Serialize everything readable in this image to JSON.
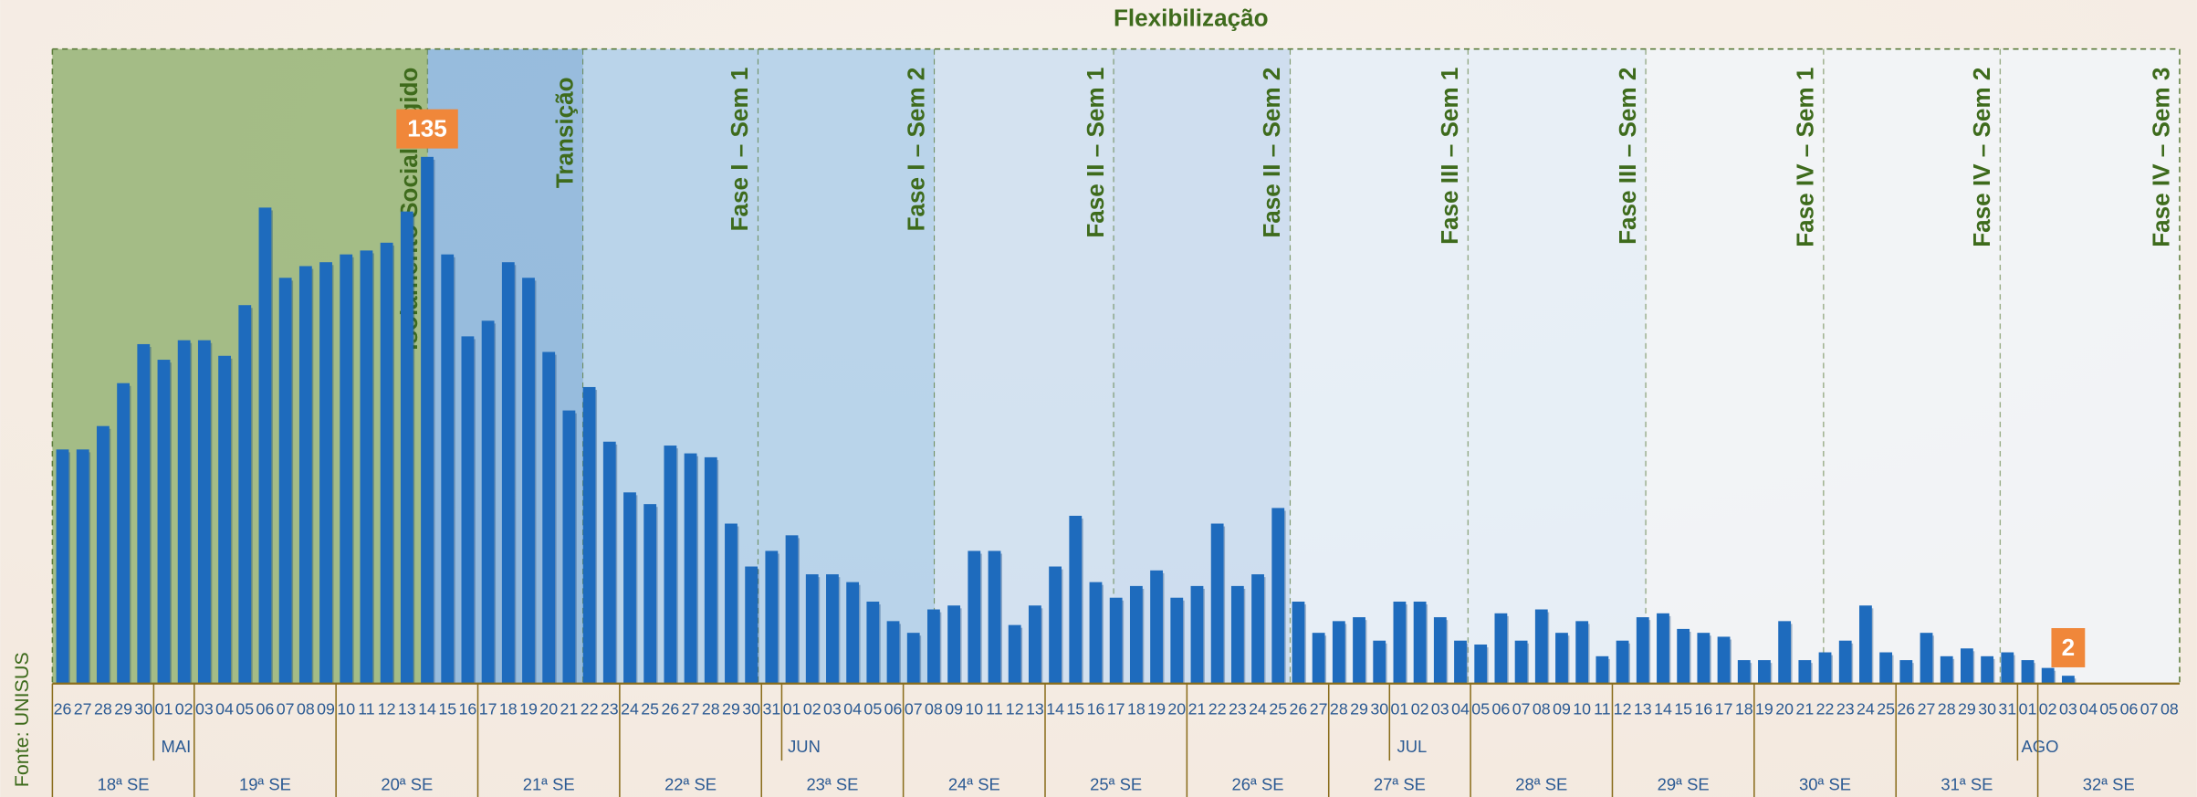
{
  "chart_data": {
    "type": "bar",
    "title": "Flexibilização",
    "source": "Fonte: UNISUS",
    "color": "#1e6bbd",
    "categories": [
      "26",
      "27",
      "28",
      "29",
      "30",
      "01",
      "02",
      "03",
      "04",
      "05",
      "06",
      "07",
      "08",
      "09",
      "10",
      "11",
      "12",
      "13",
      "14",
      "15",
      "16",
      "17",
      "18",
      "19",
      "20",
      "21",
      "22",
      "23",
      "24",
      "25",
      "26",
      "27",
      "28",
      "29",
      "30",
      "31",
      "01",
      "02",
      "03",
      "04",
      "05",
      "06",
      "07",
      "08",
      "09",
      "10",
      "11",
      "12",
      "13",
      "14",
      "15",
      "16",
      "17",
      "18",
      "19",
      "20",
      "21",
      "22",
      "23",
      "24",
      "25",
      "26",
      "27",
      "28",
      "29",
      "30",
      "01",
      "02",
      "03",
      "04",
      "05",
      "06",
      "07",
      "08",
      "09",
      "10",
      "11",
      "12",
      "13",
      "14",
      "15",
      "16",
      "17",
      "18",
      "19",
      "20",
      "21",
      "22",
      "23",
      "24",
      "25",
      "26",
      "27",
      "28",
      "29",
      "30",
      "31",
      "01",
      "02",
      "03",
      "04",
      "05",
      "06",
      "07",
      "08"
    ],
    "values": [
      60,
      60,
      66,
      77,
      87,
      83,
      88,
      88,
      84,
      97,
      122,
      104,
      107,
      108,
      110,
      111,
      113,
      121,
      135,
      110,
      89,
      93,
      108,
      104,
      85,
      70,
      76,
      62,
      49,
      46,
      61,
      59,
      58,
      41,
      30,
      34,
      38,
      28,
      28,
      26,
      21,
      16,
      13,
      19,
      20,
      34,
      34,
      15,
      20,
      30,
      43,
      26,
      22,
      25,
      29,
      22,
      25,
      41,
      25,
      28,
      45,
      21,
      13,
      16,
      17,
      11,
      21,
      21,
      17,
      11,
      10,
      18,
      11,
      19,
      13,
      16,
      7,
      11,
      17,
      18,
      14,
      13,
      12,
      6,
      6,
      16,
      6,
      8,
      11,
      20,
      8,
      6,
      13,
      7,
      9,
      7,
      8,
      6,
      4,
      2,
      null,
      null,
      null,
      null,
      null
    ],
    "value_labels": [
      null,
      null,
      null,
      null,
      null,
      null,
      null,
      null,
      null,
      null,
      null,
      null,
      null,
      null,
      null,
      null,
      null,
      null,
      "135",
      null,
      null,
      null,
      null,
      null,
      null,
      null,
      null,
      null,
      null,
      null,
      null,
      null,
      null,
      null,
      null,
      null,
      null,
      null,
      null,
      null,
      null,
      null,
      null,
      null,
      null,
      null,
      null,
      null,
      null,
      null,
      null,
      null,
      null,
      null,
      null,
      null,
      null,
      null,
      null,
      null,
      null,
      null,
      null,
      null,
      null,
      null,
      null,
      null,
      null,
      null,
      null,
      null,
      null,
      null,
      null,
      null,
      null,
      null,
      null,
      null,
      null,
      null,
      null,
      null,
      null,
      null,
      null,
      null,
      null,
      null,
      null,
      null,
      null,
      null,
      null,
      null,
      null,
      null,
      null,
      "2",
      null,
      null,
      null,
      null,
      null
    ],
    "months": [
      "MAI",
      "JUN",
      "JUL",
      "AGO"
    ],
    "weeks": [
      "18ª SE",
      "19ª SE",
      "20ª SE",
      "21ª SE",
      "22ª SE",
      "23ª SE",
      "24ª SE",
      "25ª SE",
      "26ª SE",
      "27ª SE",
      "28ª SE",
      "29ª SE",
      "30ª SE",
      "31ª SE",
      "32ª SE"
    ],
    "phases": [
      {
        "label": "Isolamento Social Rígido",
        "color": "#9fb981"
      },
      {
        "label": "Transição",
        "color": "#8db6dc"
      },
      {
        "label": "Fase I – Sem 1",
        "color": "#b3d0ea"
      },
      {
        "label": "Fase I – Sem 2",
        "color": "#b3d0ea"
      },
      {
        "label": "Fase II – Sem 1",
        "color": "#cfe0f1"
      },
      {
        "label": "Fase II – Sem 2",
        "color": "#cadcef"
      },
      {
        "label": "Fase III – Sem 1",
        "color": "#e6eef7"
      },
      {
        "label": "Fase III – Sem 2",
        "color": "#e6eef7"
      },
      {
        "label": "Fase IV – Sem 1",
        "color": "#f2f4f7"
      },
      {
        "label": "Fase IV – Sem 2",
        "color": "#f2f4f7"
      },
      {
        "label": "Fase IV – Sem 3",
        "color": "#f2f4f7"
      }
    ]
  }
}
